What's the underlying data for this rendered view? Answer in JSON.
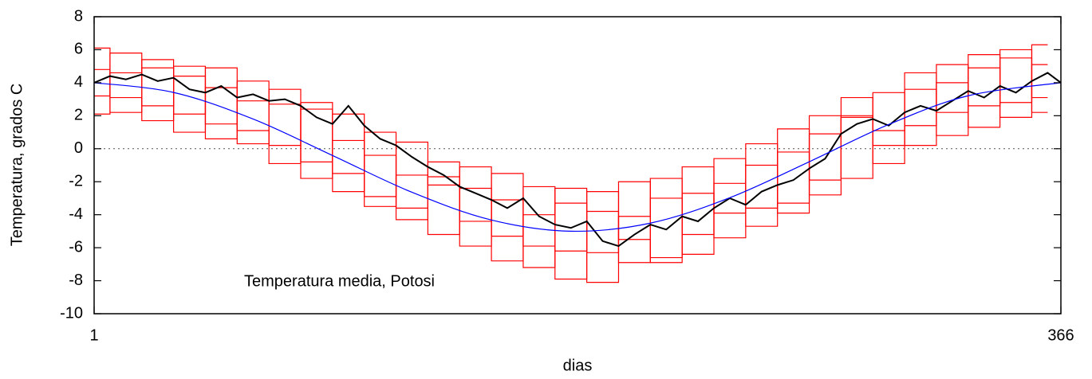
{
  "chart_data": {
    "type": "line",
    "xlabel": "dias",
    "ylabel": "Temperatura, grados C",
    "annotation": "Temperatura media, Potosi",
    "xlim": [
      1,
      366
    ],
    "xticks": [
      1,
      366
    ],
    "ylim": [
      -10,
      8
    ],
    "yticks": [
      -10,
      -8,
      -6,
      -4,
      -2,
      0,
      2,
      4,
      6,
      8
    ],
    "zeroaxis": true,
    "series": [
      {
        "color": "#ff0000",
        "style": "steps",
        "x": [
          1,
          13,
          25,
          37,
          49,
          61,
          73,
          85,
          97,
          109,
          121,
          133,
          145,
          157,
          169,
          181,
          193,
          205,
          217,
          229,
          241,
          253,
          265,
          277,
          289,
          301,
          313,
          325,
          337,
          349,
          361
        ],
        "values": [
          6.1,
          2.2,
          5.4,
          1.0,
          4.9,
          0.3,
          3.6,
          -1.8,
          2.1,
          -3.5,
          0.4,
          -5.2,
          -1.1,
          -6.8,
          -2.3,
          -7.9,
          -2.6,
          -6.9,
          -1.8,
          -6.4,
          -0.6,
          -4.7,
          1.2,
          -2.8,
          3.1,
          -0.9,
          4.6,
          0.8,
          5.7,
          1.9,
          6.3
        ]
      },
      {
        "color": "#ff0000",
        "style": "steps",
        "x": [
          1,
          13,
          25,
          37,
          49,
          61,
          73,
          85,
          97,
          109,
          121,
          133,
          145,
          157,
          169,
          181,
          193,
          205,
          217,
          229,
          241,
          253,
          265,
          277,
          289,
          301,
          313,
          325,
          337,
          349,
          361
        ],
        "values": [
          2.1,
          5.8,
          1.7,
          5.0,
          0.6,
          4.1,
          -0.9,
          2.8,
          -2.6,
          1.0,
          -4.3,
          -0.8,
          -5.9,
          -1.5,
          -7.2,
          -2.4,
          -8.1,
          -2.0,
          -6.6,
          -1.1,
          -5.4,
          0.3,
          -3.9,
          2.0,
          -1.8,
          3.4,
          0.2,
          5.1,
          1.3,
          6.0,
          2.2
        ]
      },
      {
        "color": "#ff0000",
        "style": "steps",
        "x": [
          1,
          13,
          25,
          37,
          49,
          61,
          73,
          85,
          97,
          109,
          121,
          133,
          145,
          157,
          169,
          181,
          193,
          205,
          217,
          229,
          241,
          253,
          265,
          277,
          289,
          301,
          313,
          325,
          337,
          349,
          361
        ],
        "values": [
          4.8,
          3.1,
          2.6,
          4.4,
          1.5,
          2.9,
          2.7,
          -0.8,
          0.5,
          -2.9,
          -1.6,
          -2.2,
          -4.4,
          -3.1,
          -5.9,
          -6.2,
          -3.8,
          -5.5,
          -6.9,
          -2.7,
          -3.9,
          -1.0,
          -3.3,
          0.9,
          1.9,
          0.2,
          3.6,
          2.2,
          4.9,
          2.8,
          5.1
        ]
      },
      {
        "color": "#ff0000",
        "style": "steps",
        "x": [
          1,
          13,
          25,
          37,
          49,
          61,
          73,
          85,
          97,
          109,
          121,
          133,
          145,
          157,
          169,
          181,
          193,
          205,
          217,
          229,
          241,
          253,
          265,
          277,
          289,
          301,
          313,
          325,
          337,
          349,
          361
        ],
        "values": [
          3.2,
          4.6,
          4.9,
          2.1,
          3.7,
          1.1,
          0.2,
          2.4,
          -1.5,
          -0.4,
          -3.6,
          -1.7,
          -2.4,
          -5.3,
          -4.0,
          -3.3,
          -6.3,
          -4.1,
          -3.0,
          -5.2,
          -2.1,
          -3.6,
          -0.2,
          -1.9,
          2.0,
          1.1,
          1.4,
          4.0,
          2.6,
          5.5,
          3.1
        ]
      },
      {
        "color": "#000000",
        "style": "lines",
        "x": [
          1,
          7,
          13,
          19,
          25,
          31,
          37,
          43,
          49,
          55,
          61,
          67,
          73,
          79,
          85,
          91,
          97,
          103,
          109,
          115,
          121,
          127,
          133,
          139,
          145,
          151,
          157,
          163,
          169,
          175,
          181,
          187,
          193,
          199,
          205,
          211,
          217,
          223,
          229,
          235,
          241,
          247,
          253,
          259,
          265,
          271,
          277,
          283,
          289,
          295,
          301,
          307,
          313,
          319,
          325,
          331,
          337,
          343,
          349,
          355,
          361,
          366
        ],
        "values": [
          4.0,
          4.4,
          4.2,
          4.5,
          4.1,
          4.3,
          3.6,
          3.4,
          3.8,
          3.1,
          3.3,
          2.9,
          3.0,
          2.6,
          1.9,
          1.5,
          2.6,
          1.4,
          0.6,
          0.2,
          -0.5,
          -1.1,
          -1.6,
          -2.3,
          -2.7,
          -3.1,
          -3.6,
          -3.0,
          -4.1,
          -4.6,
          -4.8,
          -4.4,
          -5.6,
          -5.9,
          -5.2,
          -4.6,
          -4.9,
          -4.1,
          -4.4,
          -3.6,
          -3.0,
          -3.4,
          -2.6,
          -2.2,
          -1.9,
          -1.2,
          -0.6,
          0.9,
          1.5,
          1.8,
          1.4,
          2.2,
          2.6,
          2.3,
          2.9,
          3.5,
          3.1,
          3.8,
          3.4,
          4.1,
          4.6,
          4.0
        ]
      },
      {
        "color": "#0000ff",
        "style": "smooth",
        "x": [
          1,
          31,
          61,
          91,
          121,
          151,
          181,
          211,
          241,
          271,
          301,
          331,
          366
        ],
        "values": [
          4.0,
          3.41,
          1.8,
          -0.41,
          -2.64,
          -4.32,
          -5.0,
          -4.51,
          -2.97,
          -0.79,
          1.47,
          3.21,
          4.0
        ]
      }
    ]
  }
}
